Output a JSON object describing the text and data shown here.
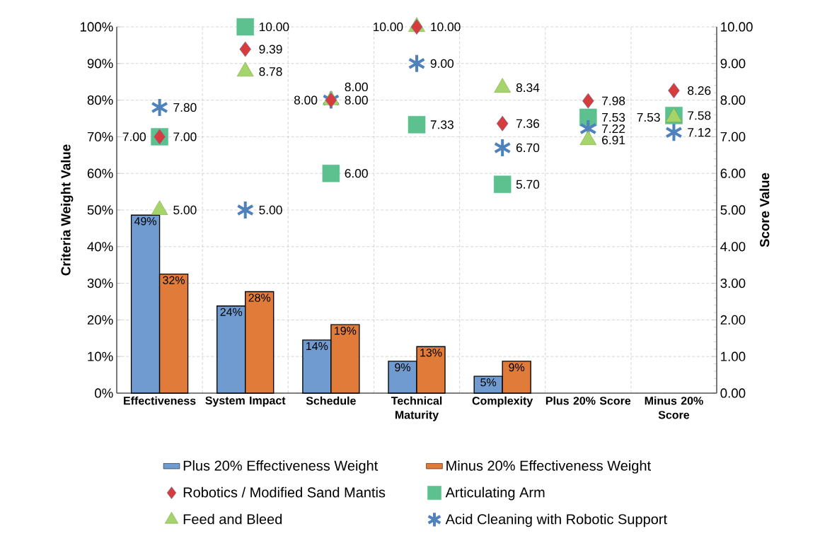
{
  "chart_data": {
    "type": "bar",
    "categories": [
      "Effectiveness",
      "System Impact",
      "Schedule",
      "Technical Maturity",
      "Complexity",
      "Plus 20% Score",
      "Minus 20% Score"
    ],
    "series": [
      {
        "name": "Plus 20% Effectiveness Weight",
        "type": "bar",
        "color": "#6f9bd1",
        "values": [
          48.6,
          23.8,
          14.5,
          8.7,
          4.6,
          null,
          null
        ],
        "value_labels": [
          "49%",
          "24%",
          "14%",
          "9%",
          "5%",
          null,
          null
        ]
      },
      {
        "name": "Minus 20% Effectiveness Weight",
        "type": "bar",
        "color": "#e07b39",
        "values": [
          32.5,
          27.7,
          18.7,
          12.7,
          8.7,
          null,
          null
        ],
        "value_labels": [
          "32%",
          "28%",
          "19%",
          "13%",
          "9%",
          null,
          null
        ]
      },
      {
        "name": "Robotics / Modified Sand Mantis",
        "type": "scatter",
        "axis": "y2",
        "marker": "diamond",
        "color": "#d63c3c",
        "values": [
          7.0,
          9.39,
          8.0,
          10.0,
          7.36,
          7.98,
          8.26
        ],
        "value_labels": [
          "7.00",
          "9.39",
          "8.00",
          "10.00",
          "7.36",
          "7.98",
          "8.26"
        ]
      },
      {
        "name": "Articulating Arm",
        "type": "scatter",
        "axis": "y2",
        "marker": "square",
        "color": "#5cc18f",
        "values": [
          7.0,
          10.0,
          6.0,
          7.33,
          5.7,
          7.53,
          7.58
        ],
        "value_labels": [
          "7.00",
          "10.00",
          "6.00",
          "7.33",
          "5.70",
          "7.53",
          "7.58"
        ]
      },
      {
        "name": "Feed and Bleed",
        "type": "scatter",
        "axis": "y2",
        "marker": "triangle",
        "color": "#a5d46a",
        "values": [
          5.0,
          8.78,
          8.0,
          10.0,
          8.34,
          6.91,
          7.53
        ],
        "value_labels": [
          "5.00",
          "8.78",
          "8.00",
          "10.00",
          "8.34",
          "6.91",
          "7.53"
        ]
      },
      {
        "name": "Acid Cleaning with Robotic Support",
        "type": "scatter",
        "axis": "y2",
        "marker": "cross",
        "color": "#4f81bd",
        "values": [
          7.8,
          5.0,
          8.0,
          9.0,
          6.7,
          7.22,
          7.12
        ],
        "value_labels": [
          "7.80",
          "5.00",
          "8.00",
          "9.00",
          "6.70",
          "7.22",
          "7.12"
        ]
      }
    ],
    "ylabel": "Criteria Weight Value",
    "y2label": "Score Value",
    "ylim": [
      0,
      100
    ],
    "yticks": [
      {
        "value": 0,
        "label": "0%"
      },
      {
        "value": 10,
        "label": "10%"
      },
      {
        "value": 20,
        "label": "20%"
      },
      {
        "value": 30,
        "label": "30%"
      },
      {
        "value": 40,
        "label": "40%"
      },
      {
        "value": 50,
        "label": "50%"
      },
      {
        "value": 60,
        "label": "60%"
      },
      {
        "value": 70,
        "label": "70%"
      },
      {
        "value": 80,
        "label": "80%"
      },
      {
        "value": 90,
        "label": "90%"
      },
      {
        "value": 100,
        "label": "100%"
      }
    ],
    "y2lim": [
      0,
      10
    ],
    "y2ticks": [
      {
        "value": 0,
        "label": "0.00"
      },
      {
        "value": 1,
        "label": "1.00"
      },
      {
        "value": 2,
        "label": "2.00"
      },
      {
        "value": 3,
        "label": "3.00"
      },
      {
        "value": 4,
        "label": "4.00"
      },
      {
        "value": 5,
        "label": "5.00"
      },
      {
        "value": 6,
        "label": "6.00"
      },
      {
        "value": 7,
        "label": "7.00"
      },
      {
        "value": 8,
        "label": "8.00"
      },
      {
        "value": 9,
        "label": "9.00"
      },
      {
        "value": 10,
        "label": "10.00"
      }
    ],
    "grid": true,
    "legend": "bottom"
  }
}
